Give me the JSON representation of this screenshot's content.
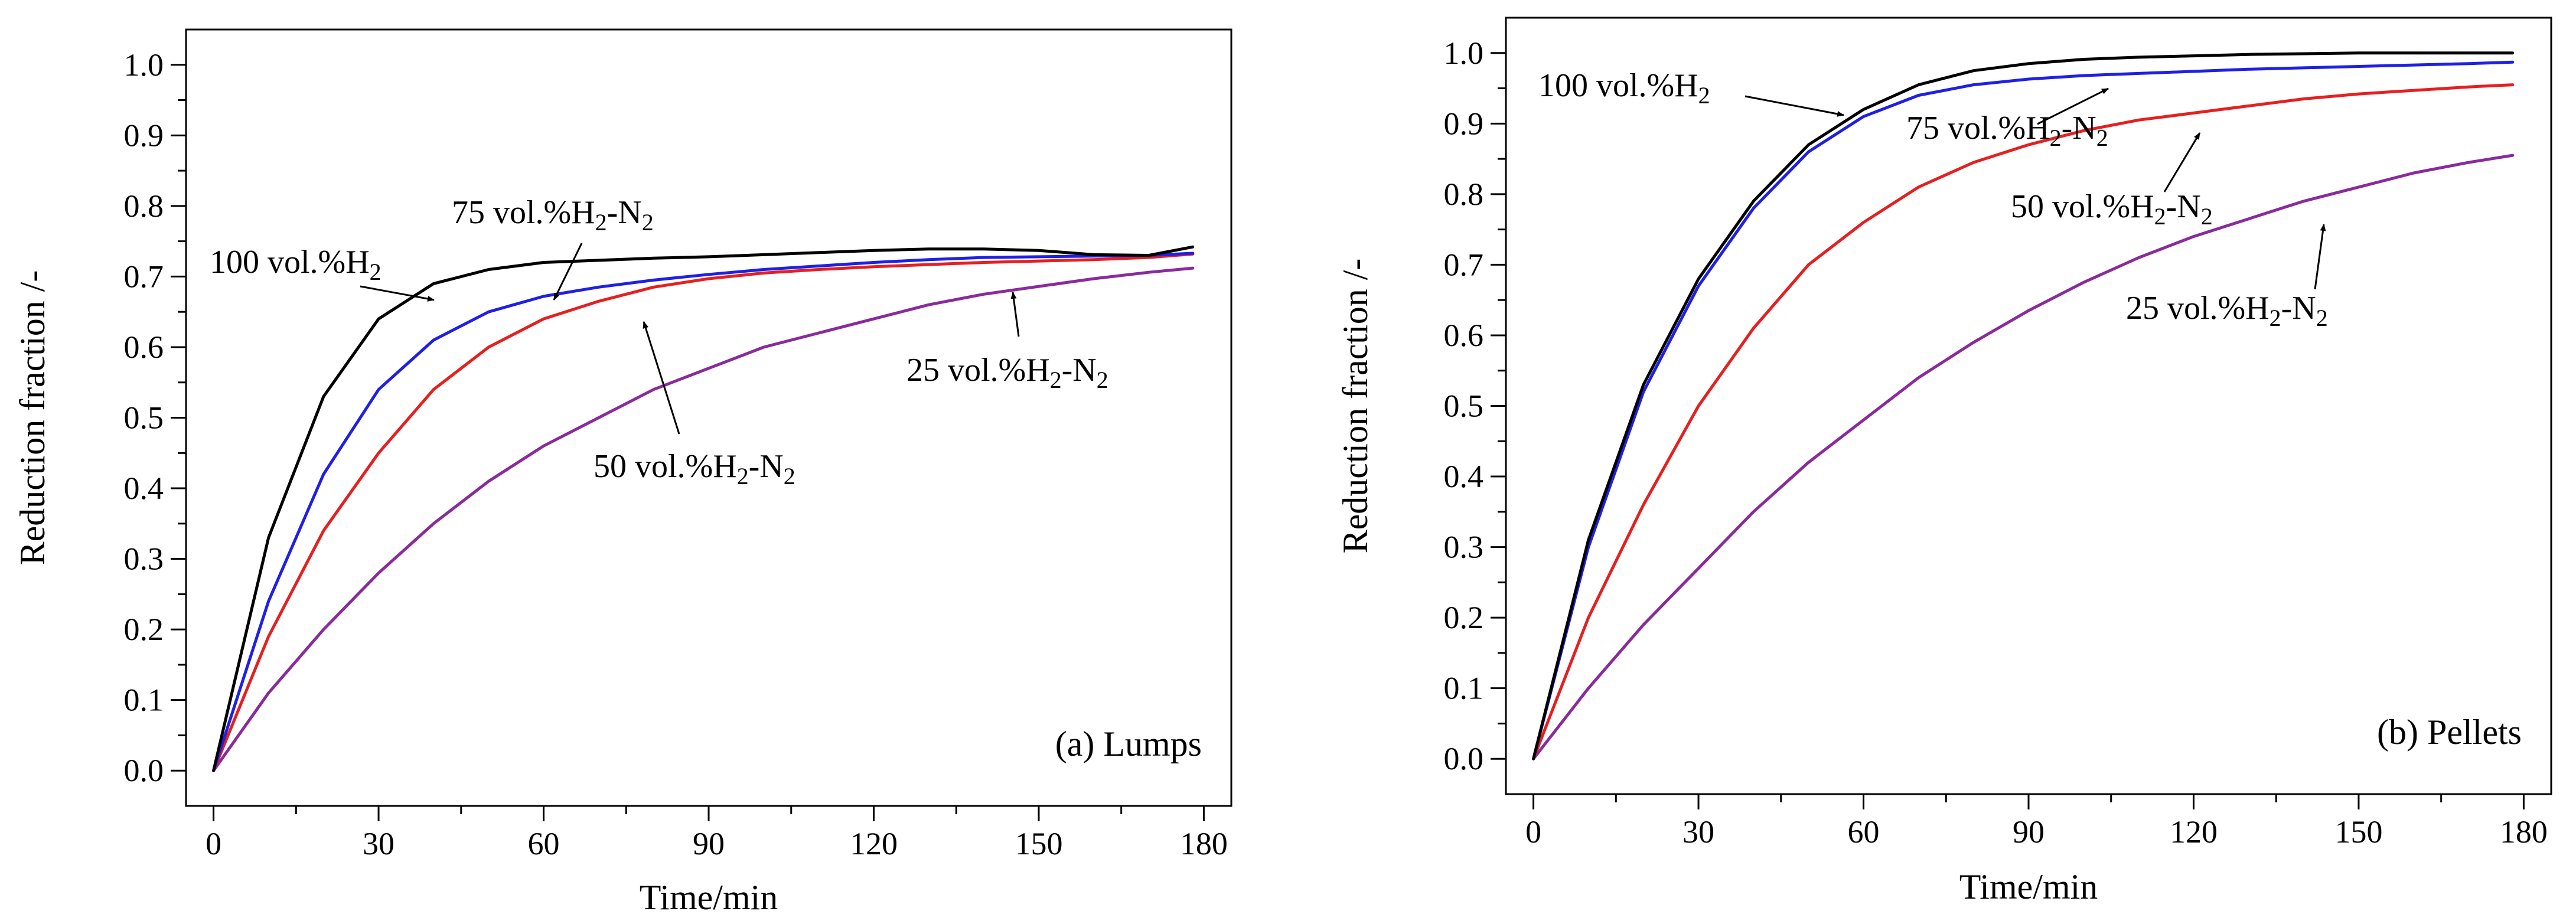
{
  "colors": {
    "100_h2": "#000000",
    "75_h2_n2": "#1f1fe6",
    "50_h2_n2": "#e61f1f",
    "25_h2_n2": "#8a2a9c"
  },
  "chart_data": [
    {
      "type": "line",
      "panel_label": "(a) Lumps",
      "xlabel": "Time/min",
      "ylabel": "Reduction fraction /-",
      "xlim": [
        -5,
        185
      ],
      "ylim": [
        -0.05,
        1.05
      ],
      "xticks": [
        "0",
        "30",
        "60",
        "90",
        "120",
        "150",
        "180"
      ],
      "yticks": [
        "0.0",
        "0.1",
        "0.2",
        "0.3",
        "0.4",
        "0.5",
        "0.6",
        "0.7",
        "0.8",
        "0.9",
        "1.0"
      ],
      "x": [
        0,
        10,
        20,
        30,
        40,
        50,
        60,
        70,
        80,
        90,
        100,
        110,
        120,
        130,
        140,
        150,
        160,
        170,
        178
      ],
      "series": [
        {
          "name": "100 vol.%H2",
          "color_key": "100_h2",
          "values": [
            0,
            0.33,
            0.53,
            0.64,
            0.69,
            0.71,
            0.72,
            0.723,
            0.726,
            0.728,
            0.731,
            0.734,
            0.737,
            0.739,
            0.739,
            0.737,
            0.731,
            0.73,
            0.742
          ]
        },
        {
          "name": "75 vol.%H2-N2",
          "color_key": "75_h2_n2",
          "values": [
            0,
            0.24,
            0.42,
            0.54,
            0.61,
            0.65,
            0.672,
            0.685,
            0.695,
            0.703,
            0.71,
            0.715,
            0.72,
            0.724,
            0.727,
            0.728,
            0.729,
            0.73,
            0.733
          ]
        },
        {
          "name": "50 vol.%H2-N2",
          "color_key": "50_h2_n2",
          "values": [
            0,
            0.19,
            0.34,
            0.45,
            0.54,
            0.6,
            0.64,
            0.665,
            0.685,
            0.697,
            0.705,
            0.71,
            0.714,
            0.717,
            0.72,
            0.722,
            0.724,
            0.727,
            0.732
          ]
        },
        {
          "name": "25 vol.%H2-N2",
          "color_key": "25_h2_n2",
          "values": [
            0,
            0.11,
            0.2,
            0.28,
            0.35,
            0.41,
            0.46,
            0.5,
            0.54,
            0.57,
            0.6,
            0.62,
            0.64,
            0.66,
            0.675,
            0.686,
            0.697,
            0.706,
            0.712
          ]
        }
      ],
      "annotations": [
        {
          "main": "100 vol.%H",
          "sub1": "2",
          "mid": "",
          "sub2": "",
          "series": "100 vol.%H2"
        },
        {
          "main": "75 vol.%H",
          "sub1": "2",
          "mid": "-N",
          "sub2": "2",
          "series": "75 vol.%H2-N2"
        },
        {
          "main": "50 vol.%H",
          "sub1": "2",
          "mid": "-N",
          "sub2": "2",
          "series": "50 vol.%H2-N2"
        },
        {
          "main": "25 vol.%H",
          "sub1": "2",
          "mid": "-N",
          "sub2": "2",
          "series": "25 vol.%H2-N2"
        }
      ]
    },
    {
      "type": "line",
      "panel_label": "(b) Pellets",
      "xlabel": "Time/min",
      "ylabel": "Reduction fraction /-",
      "xlim": [
        -5,
        185
      ],
      "ylim": [
        -0.05,
        1.05
      ],
      "xticks": [
        "0",
        "30",
        "60",
        "90",
        "120",
        "150",
        "180"
      ],
      "yticks": [
        "0.0",
        "0.1",
        "0.2",
        "0.3",
        "0.4",
        "0.5",
        "0.6",
        "0.7",
        "0.8",
        "0.9",
        "1.0"
      ],
      "x": [
        0,
        10,
        20,
        30,
        40,
        50,
        60,
        70,
        80,
        90,
        100,
        110,
        120,
        130,
        140,
        150,
        160,
        170,
        178
      ],
      "series": [
        {
          "name": "100 vol.%H2",
          "color_key": "100_h2",
          "values": [
            0,
            0.31,
            0.53,
            0.68,
            0.79,
            0.87,
            0.92,
            0.955,
            0.975,
            0.985,
            0.991,
            0.994,
            0.996,
            0.998,
            0.999,
            1.0,
            1.0,
            1.0,
            1.0
          ]
        },
        {
          "name": "75 vol.%H2-N2",
          "color_key": "75_h2_n2",
          "values": [
            0,
            0.3,
            0.52,
            0.67,
            0.78,
            0.86,
            0.91,
            0.94,
            0.955,
            0.963,
            0.968,
            0.971,
            0.974,
            0.977,
            0.979,
            0.981,
            0.983,
            0.985,
            0.987
          ]
        },
        {
          "name": "50 vol.%H2-N2",
          "color_key": "50_h2_n2",
          "values": [
            0,
            0.2,
            0.36,
            0.5,
            0.61,
            0.7,
            0.76,
            0.81,
            0.845,
            0.87,
            0.89,
            0.905,
            0.915,
            0.925,
            0.935,
            0.942,
            0.947,
            0.952,
            0.955
          ]
        },
        {
          "name": "25 vol.%H2-N2",
          "color_key": "25_h2_n2",
          "values": [
            0,
            0.1,
            0.19,
            0.27,
            0.35,
            0.42,
            0.48,
            0.54,
            0.59,
            0.635,
            0.675,
            0.71,
            0.74,
            0.765,
            0.79,
            0.81,
            0.83,
            0.845,
            0.855
          ]
        }
      ],
      "annotations": [
        {
          "main": "100 vol.%H",
          "sub1": "2",
          "mid": "",
          "sub2": "",
          "series": "100 vol.%H2"
        },
        {
          "main": "75 vol.%H",
          "sub1": "2",
          "mid": "-N",
          "sub2": "2",
          "series": "75 vol.%H2-N2"
        },
        {
          "main": "50 vol.%H",
          "sub1": "2",
          "mid": "-N",
          "sub2": "2",
          "series": "50 vol.%H2-N2"
        },
        {
          "main": "25 vol.%H",
          "sub1": "2",
          "mid": "-N",
          "sub2": "2",
          "series": "25 vol.%H2-N2"
        }
      ]
    }
  ]
}
